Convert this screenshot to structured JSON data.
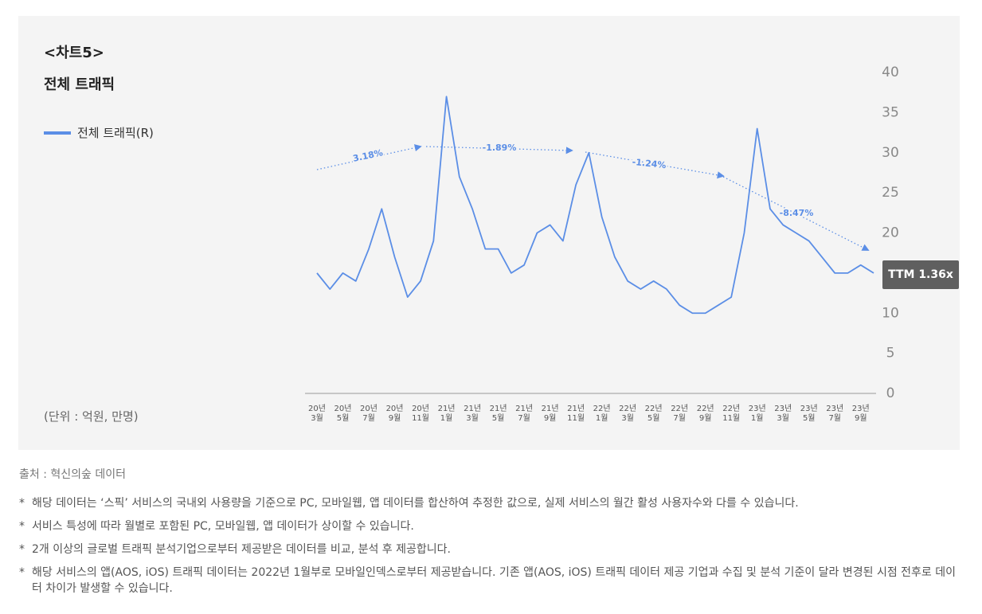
{
  "chart_data": {
    "type": "line",
    "label": "<차트5>",
    "title": "전체 트래픽",
    "unit_note": "(단위 : 억원, 만명)",
    "categories": [
      "20년 3월",
      null,
      "20년 5월",
      null,
      "20년 7월",
      null,
      "20년 9월",
      null,
      "20년 11월",
      null,
      "21년 1월",
      null,
      "21년 3월",
      null,
      "21년 5월",
      null,
      "21년 7월",
      null,
      "21년 9월",
      null,
      "21년 11월",
      null,
      "22년 1월",
      null,
      "22년 3월",
      null,
      "22년 5월",
      null,
      "22년 7월",
      null,
      "22년 9월",
      null,
      "22년 11월",
      null,
      "23년 1월",
      null,
      "23년 3월",
      null,
      "23년 5월",
      null,
      "23년 7월",
      null,
      "23년 9월",
      null
    ],
    "series": [
      {
        "name": "전체 트래픽(R)",
        "color": "#5b8ee6",
        "values": [
          15,
          13,
          15,
          14,
          18,
          23,
          17,
          12,
          14,
          19,
          37,
          27,
          23,
          18,
          18,
          15,
          16,
          20,
          21,
          19,
          26,
          30,
          22,
          17,
          14,
          13,
          14,
          13,
          11,
          10,
          10,
          11,
          12,
          20,
          33,
          23,
          21,
          20,
          19,
          17,
          15,
          15,
          16,
          15
        ]
      }
    ],
    "ylim": [
      0,
      40
    ],
    "yticks": [
      0,
      5,
      10,
      15,
      20,
      25,
      30,
      35,
      40
    ],
    "y_axis_side": "right",
    "grid": false,
    "annotations": [
      "3.18%",
      "-1.89%",
      "-1.24%",
      "-8.47%"
    ],
    "badge": "TTM 1.36x"
  },
  "source": "출처 : 혁신의숲 데이터",
  "note_marker": "*",
  "notes": [
    "해당 데이터는 ‘스픽’ 서비스의 국내외 사용량을 기준으로 PC, 모바일웹, 앱 데이터를 합산하여 추정한 값으로, 실제 서비스의 월간 활성 사용자수와 다를 수 있습니다.",
    "서비스 특성에 따라 월별로 포함된 PC, 모바일웹, 앱 데이터가 상이할 수 있습니다.",
    "2개 이상의 글로벌 트래픽 분석기업으로부터 제공받은 데이터를 비교, 분석 후 제공합니다.",
    "해당 서비스의 앱(AOS, iOS) 트래픽 데이터는 2022년 1월부로 모바일인덱스로부터 제공받습니다. 기존 앱(AOS, iOS) 트래픽 데이터 제공 기업과 수집 및 분석 기준이 달라 변경된 시점 전후로 데이터 차이가 발생할 수 있습니다."
  ]
}
